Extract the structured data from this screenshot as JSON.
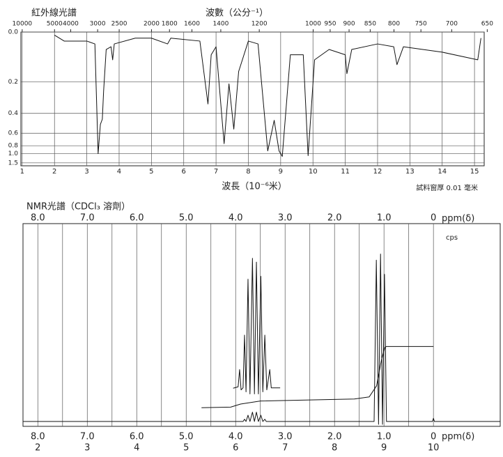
{
  "chart_data": [
    {
      "type": "line",
      "title": "紅外線光譜",
      "x2_label": "波數（公分⁻¹）",
      "x_label": "波長（10⁻⁶米）",
      "note": "試料窗厚 0.01 毫米",
      "x": [
        2.0,
        2.3,
        2.7,
        3.0,
        3.25,
        3.35,
        3.42,
        3.48,
        3.52,
        3.6,
        3.75,
        3.8,
        3.85,
        4.5,
        5.0,
        5.5,
        5.6,
        6.5,
        6.75,
        6.85,
        7.0,
        7.25,
        7.4,
        7.55,
        7.7,
        8.0,
        8.3,
        8.6,
        8.8,
        8.95,
        9.05,
        9.3,
        9.7,
        9.85,
        10.05,
        10.5,
        11.0,
        11.05,
        11.2,
        12.0,
        12.5,
        12.6,
        12.8,
        14.0,
        15.1,
        15.2
      ],
      "series": [
        {
          "color": "#111111",
          "values": [
            0.01,
            0.03,
            0.03,
            0.03,
            0.04,
            1.0,
            0.5,
            0.45,
            0.25,
            0.06,
            0.05,
            0.1,
            0.04,
            0.02,
            0.02,
            0.04,
            0.02,
            0.03,
            0.33,
            0.08,
            0.05,
            0.76,
            0.21,
            0.55,
            0.15,
            0.03,
            0.04,
            0.92,
            0.46,
            0.92,
            1.1,
            0.08,
            0.08,
            1.07,
            0.1,
            0.06,
            0.08,
            0.16,
            0.06,
            0.04,
            0.05,
            0.12,
            0.05,
            0.07,
            0.1,
            0.02
          ]
        }
      ],
      "xlim": [
        0.96,
        15.3
      ],
      "xticks": [
        1,
        2,
        3,
        4,
        5,
        6,
        7,
        8,
        9,
        10,
        11,
        12,
        13,
        14,
        15
      ],
      "x2lim": [
        10417,
        654
      ],
      "x2scale": "reciprocal",
      "x2ticks": [
        10000,
        5000,
        4000,
        3000,
        2500,
        2000,
        1800,
        1600,
        1400,
        1200,
        1000,
        950,
        900,
        850,
        800,
        750,
        700,
        650
      ],
      "ylim": [
        0,
        2
      ],
      "yscale": "transmittance",
      "yticks": [
        {
          "value": 0,
          "label": "0.0"
        },
        0.2,
        0.4,
        0.6,
        0.8,
        {
          "value": 1,
          "label": "1.0"
        },
        1.5
      ],
      "grid": true
    },
    {
      "type": "line",
      "title": "NMR光譜（CDCl₃ 溶劑）",
      "x_label": "ppm(δ)",
      "annotation": "cps",
      "xlim": [
        8.3,
        -1.35
      ],
      "xticks": [
        {
          "value": 8,
          "label": "8.0"
        },
        {
          "value": 7,
          "label": "7.0"
        },
        {
          "value": 6,
          "label": "6.0"
        },
        {
          "value": 5,
          "label": "5.0"
        },
        {
          "value": 4,
          "label": "4.0"
        },
        {
          "value": 3,
          "label": "3.0"
        },
        {
          "value": 2,
          "label": "2.0"
        },
        {
          "value": 1,
          "label": "1.0"
        },
        0
      ],
      "x2lim": [
        1.7,
        11.35
      ],
      "x2ticks": [
        2,
        3,
        4,
        5,
        6,
        7,
        8,
        9,
        10
      ],
      "ylim": [
        0,
        100
      ],
      "grid": true,
      "series": [
        {
          "color": "#111111",
          "x": [
            8.3,
            3.85,
            3.82,
            3.79,
            3.75,
            3.71,
            3.66,
            3.62,
            3.58,
            3.54,
            3.49,
            3.45,
            3.41,
            3.38,
            1.2,
            1.155,
            1.11,
            1.07,
            1.03,
            0.99,
            0.95,
            0.02,
            0,
            -0.02,
            -1.35
          ],
          "values": [
            2.4,
            2.4,
            3.5,
            2.4,
            5.5,
            2.4,
            7,
            2.4,
            7,
            2.4,
            5.5,
            2.4,
            3.5,
            2.4,
            2.4,
            82,
            1,
            85,
            1,
            75,
            2.4,
            2.4,
            4,
            2.4,
            2.4
          ]
        },
        {
          "color": "#111111",
          "x": [
            4.05,
            3.95,
            3.92,
            3.89,
            3.85,
            3.82,
            3.79,
            3.75,
            3.71,
            3.66,
            3.62,
            3.58,
            3.54,
            3.49,
            3.45,
            3.41,
            3.37,
            3.31,
            3.28,
            3.1
          ],
          "values": [
            18.8,
            19.5,
            28,
            18,
            19,
            45,
            17,
            72.6,
            16,
            82.9,
            16,
            81,
            16,
            74,
            17,
            45,
            18,
            28,
            19,
            19
          ]
        },
        {
          "color": "#111111",
          "x": [
            4.69,
            4.1,
            3.9,
            3.5,
            1.6,
            1.3,
            1.15,
            1.05,
            0.98,
            0.95,
            0
          ],
          "values": [
            9.2,
            9.5,
            11,
            12.5,
            13.5,
            14.5,
            20,
            33,
            39,
            39.4,
            39.4
          ]
        }
      ]
    }
  ]
}
